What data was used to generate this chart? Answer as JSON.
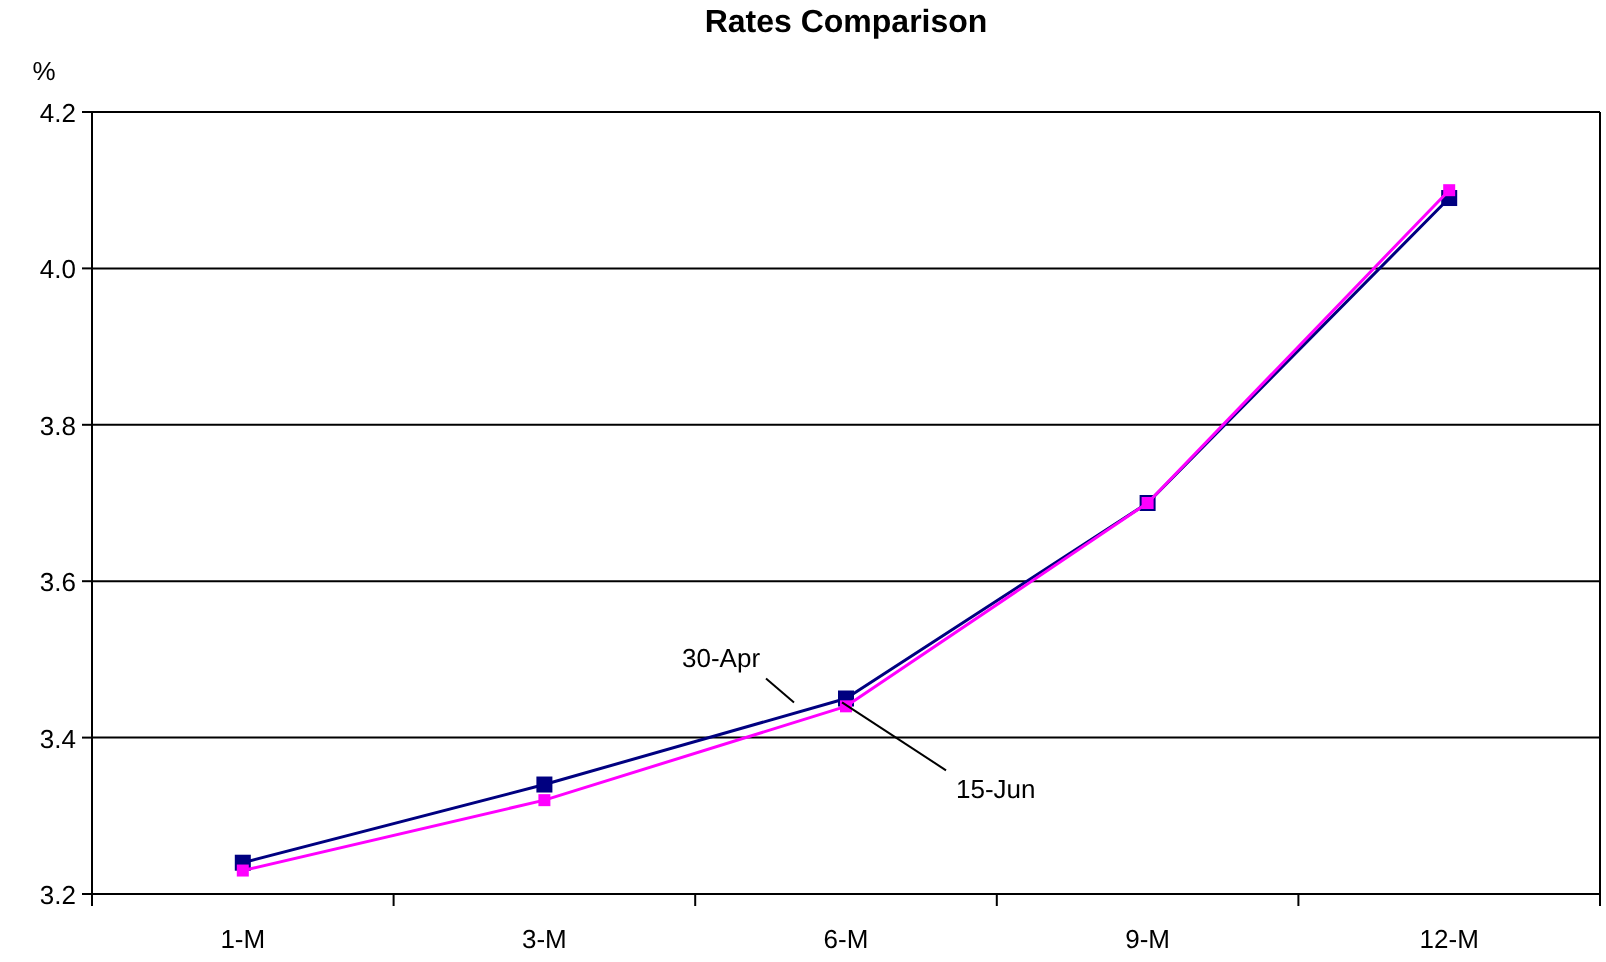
{
  "chart_data": {
    "type": "line",
    "title": "Rates Comparison",
    "ylabel": "%",
    "categories": [
      "1-M",
      "3-M",
      "6-M",
      "9-M",
      "12-M"
    ],
    "series": [
      {
        "name": "30-Apr",
        "color": "#000080",
        "values": [
          3.24,
          3.34,
          3.45,
          3.7,
          4.09
        ]
      },
      {
        "name": "15-Jun",
        "color": "#ff00ff",
        "values": [
          3.23,
          3.32,
          3.44,
          3.7,
          4.1
        ]
      }
    ],
    "ylim": [
      3.2,
      4.2
    ],
    "yticks": [
      {
        "value": 3.2,
        "label": "3.2"
      },
      {
        "value": 3.4,
        "label": "3.4"
      },
      {
        "value": 3.6,
        "label": "3.6"
      },
      {
        "value": 3.8,
        "label": "3.8"
      },
      {
        "value": 4.0,
        "label": "4.0"
      },
      {
        "value": 4.2,
        "label": "4.2"
      }
    ],
    "grid": "y",
    "legend": false,
    "marker": "square",
    "line_style": "solid"
  }
}
